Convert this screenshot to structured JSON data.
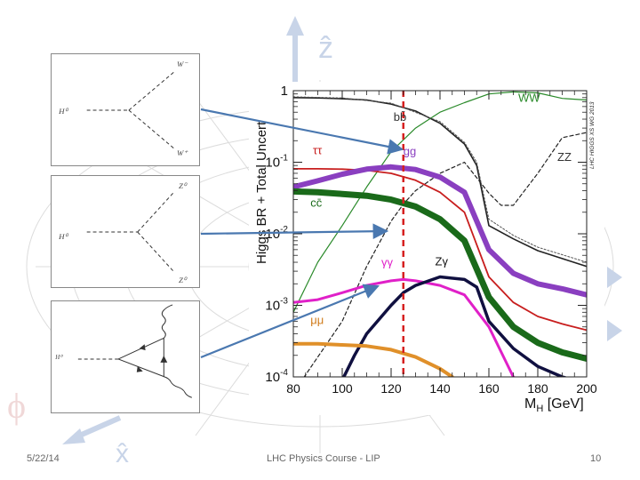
{
  "slide": {
    "date": "5/22/14",
    "course": "LHC Physics Course - LIP",
    "page": "10",
    "background_labels": {
      "z_axis": "ẑ",
      "x_axis": "x̂",
      "phi": "ϕ"
    }
  },
  "diagrams": [
    {
      "name": "H0 to WW",
      "labels": [
        "H⁰",
        "W⁻",
        "W⁺"
      ]
    },
    {
      "name": "H0 to ZZ",
      "labels": [
        "H⁰",
        "Z⁰",
        "Z⁰"
      ]
    },
    {
      "name": "H0 to gamma gamma",
      "labels": [
        "H⁰"
      ]
    }
  ],
  "chart_data": {
    "type": "line",
    "ylabel": "Higgs BR + Total Uncert",
    "xlabel": "M_H [GeV]",
    "xlabel_main": "M",
    "xlabel_sub": "H",
    "xlabel_unit": " [GeV]",
    "watermark": "LHC HIGGS XS WG 2013",
    "xlim": [
      80,
      200
    ],
    "ylim": [
      0.0001,
      1
    ],
    "yscale": "log",
    "xticks": [
      80,
      100,
      120,
      140,
      160,
      180,
      200
    ],
    "ytick_labels": [
      {
        "base": "1",
        "exp": "",
        "value": 1
      },
      {
        "base": "10",
        "exp": "-1",
        "value": 0.1
      },
      {
        "base": "10",
        "exp": "-2",
        "value": 0.01
      },
      {
        "base": "10",
        "exp": "-3",
        "value": 0.001
      },
      {
        "base": "10",
        "exp": "-4",
        "value": 0.0001
      }
    ],
    "marker_line": {
      "x": 125,
      "color": "#d62020"
    },
    "series": [
      {
        "name": "bb̄",
        "color": "#222222",
        "width": 1.6,
        "label": {
          "text": "bb̄",
          "color": "#333333",
          "x": 121,
          "y": 0.38
        },
        "x": [
          80,
          90,
          100,
          110,
          120,
          130,
          140,
          150,
          155,
          160,
          170,
          180,
          190,
          200
        ],
        "y": [
          0.8,
          0.79,
          0.77,
          0.74,
          0.65,
          0.52,
          0.35,
          0.18,
          0.09,
          0.013,
          0.0085,
          0.0058,
          0.0045,
          0.0035
        ]
      },
      {
        "name": "WW",
        "color": "#2a8a2a",
        "width": 1.2,
        "label": {
          "text": "WW",
          "color": "#2a8a2a",
          "x": 172,
          "y": 0.7
        },
        "x": [
          80,
          85,
          90,
          100,
          110,
          120,
          130,
          140,
          150,
          160,
          170,
          180,
          190,
          200
        ],
        "y": [
          0.0008,
          0.0018,
          0.004,
          0.013,
          0.045,
          0.14,
          0.3,
          0.5,
          0.68,
          0.9,
          0.96,
          0.93,
          0.78,
          0.74
        ]
      },
      {
        "name": "ZZ",
        "color": "#222222",
        "width": 1.2,
        "dash": "4,3",
        "label": {
          "text": "ZZ",
          "color": "#333333",
          "x": 188,
          "y": 0.105
        },
        "x": [
          80,
          100,
          110,
          120,
          125,
          130,
          140,
          150,
          160,
          165,
          170,
          180,
          190,
          200
        ],
        "y": [
          6e-05,
          0.0006,
          0.0035,
          0.015,
          0.026,
          0.04,
          0.07,
          0.1,
          0.037,
          0.025,
          0.025,
          0.07,
          0.22,
          0.26
        ]
      },
      {
        "name": "ττ",
        "color": "#c81e1e",
        "width": 1.8,
        "label": {
          "text": "ττ",
          "color": "#c81e1e",
          "x": 88,
          "y": 0.13
        },
        "x": [
          80,
          90,
          100,
          110,
          120,
          130,
          140,
          150,
          160,
          170,
          180,
          190,
          200
        ],
        "y": [
          0.081,
          0.081,
          0.08,
          0.077,
          0.07,
          0.056,
          0.038,
          0.02,
          0.0025,
          0.0011,
          0.0007,
          0.00055,
          0.00045
        ]
      },
      {
        "name": "gg",
        "color": "#8a3fc0",
        "width": 6,
        "label": {
          "text": "gg",
          "color": "#8a3fc0",
          "x": 125,
          "y": 0.125
        },
        "x": [
          80,
          90,
          100,
          110,
          120,
          130,
          140,
          150,
          160,
          170,
          180,
          190,
          200
        ],
        "y": [
          0.045,
          0.055,
          0.068,
          0.08,
          0.086,
          0.079,
          0.062,
          0.038,
          0.006,
          0.0028,
          0.002,
          0.0017,
          0.0014
        ]
      },
      {
        "name": "cc̄",
        "color": "#1a6a1a",
        "width": 7,
        "label": {
          "text": "cc̄",
          "color": "#1a6a1a",
          "x": 87,
          "y": 0.024
        },
        "x": [
          80,
          90,
          100,
          110,
          120,
          130,
          140,
          150,
          160,
          170,
          180,
          190,
          200
        ],
        "y": [
          0.039,
          0.038,
          0.036,
          0.034,
          0.03,
          0.024,
          0.016,
          0.008,
          0.0013,
          0.0005,
          0.0003,
          0.00022,
          0.00018
        ]
      },
      {
        "name": "γγ",
        "color": "#e020c8",
        "width": 3,
        "label": {
          "text": "γγ",
          "color": "#e020c8",
          "x": 116,
          "y": 0.0035
        },
        "x": [
          80,
          90,
          100,
          110,
          120,
          125,
          130,
          140,
          150,
          160,
          170,
          180
        ],
        "y": [
          0.0011,
          0.0012,
          0.0015,
          0.0019,
          0.0022,
          0.0023,
          0.0022,
          0.0019,
          0.0014,
          0.0005,
          0.0001,
          6e-05
        ]
      },
      {
        "name": "Zγ",
        "color": "#101040",
        "width": 3.5,
        "label": {
          "text": "Zγ",
          "color": "#111111",
          "x": 138,
          "y": 0.0036
        },
        "x": [
          100,
          105,
          110,
          120,
          125,
          130,
          140,
          150,
          155,
          160,
          170,
          180,
          190,
          200
        ],
        "y": [
          9e-05,
          0.0002,
          0.0004,
          0.001,
          0.0015,
          0.0019,
          0.0025,
          0.0023,
          0.0018,
          0.0006,
          0.00025,
          0.00014,
          0.0001,
          8e-05
        ]
      },
      {
        "name": "μμ",
        "color": "#e0902a",
        "width": 4,
        "label": {
          "text": "μμ",
          "color": "#d07b1a",
          "x": 87,
          "y": 0.00055
        },
        "x": [
          80,
          90,
          100,
          110,
          120,
          130,
          140,
          145
        ],
        "y": [
          0.00029,
          0.00029,
          0.00028,
          0.00027,
          0.00024,
          0.00019,
          0.00013,
          0.0001
        ]
      },
      {
        "name": "bb̄ uncertainty",
        "color": "#555555",
        "width": 1,
        "dash": "2,2",
        "label": null,
        "x": [
          80,
          100,
          120,
          140,
          150,
          155,
          160,
          170,
          180,
          200
        ],
        "y": [
          0.82,
          0.79,
          0.67,
          0.37,
          0.19,
          0.1,
          0.016,
          0.0095,
          0.0065,
          0.004
        ]
      }
    ]
  }
}
